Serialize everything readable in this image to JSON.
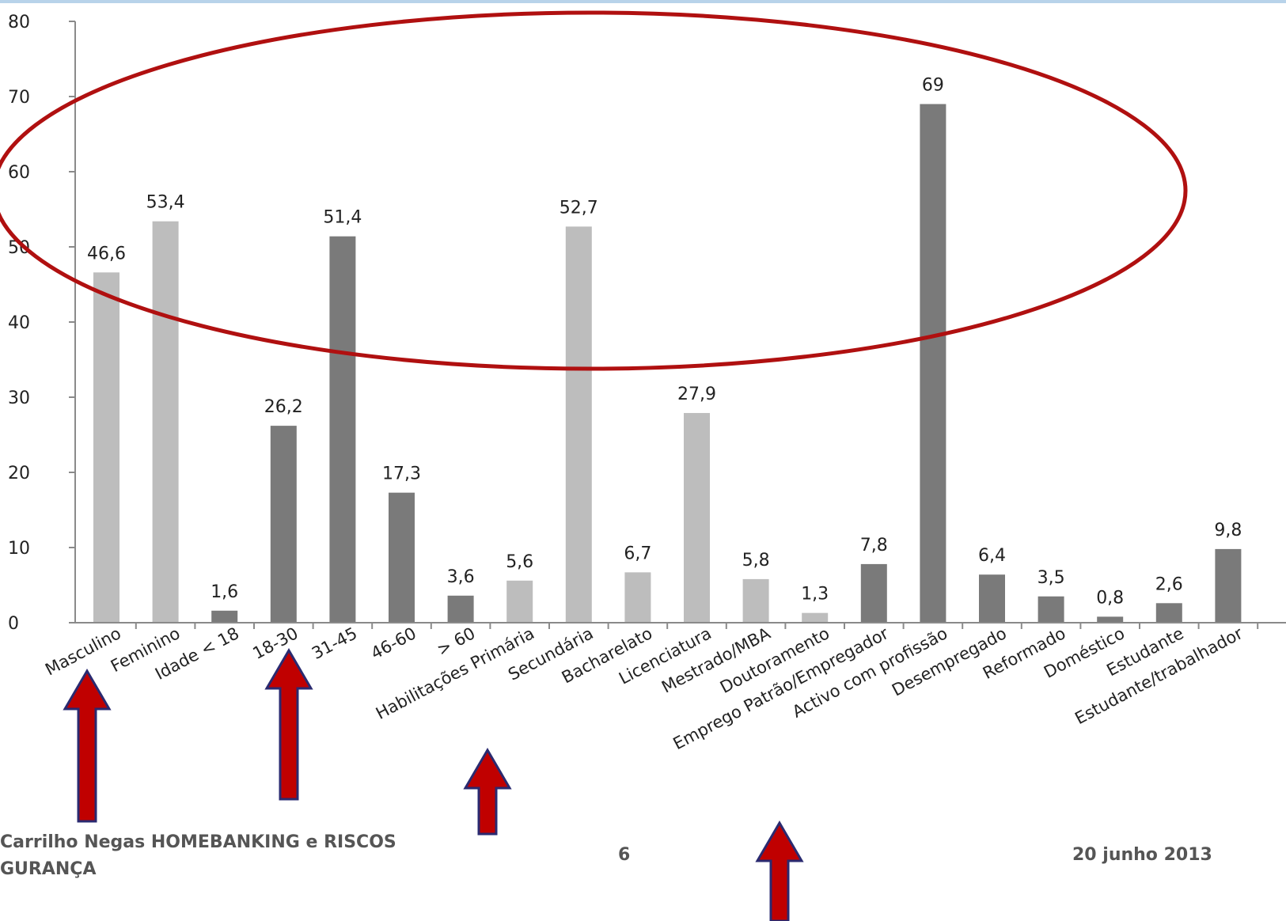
{
  "colors": {
    "dark_bar": "#7a7a7a",
    "light_bar": "#bdbdbd",
    "ellipse": "#b01010",
    "arrow_fill": "#c00000",
    "arrow_stroke": "#2a2a70"
  },
  "chart_data": {
    "type": "bar",
    "categories": [
      "Masculino",
      "Feminino",
      "Idade < 18",
      "18-30",
      "31-45",
      "46-60",
      "> 60",
      "Habilitações Primária",
      "Secundária",
      "Bacharelato",
      "Licenciatura",
      "Mestrado/MBA",
      "Doutoramento",
      "Emprego Patrão/Empregador",
      "Activo com profissão",
      "Desempregado",
      "Reformado",
      "Doméstico",
      "Estudante",
      "Estudante/trabalhador"
    ],
    "values": [
      46.6,
      53.4,
      1.6,
      26.2,
      51.4,
      17.3,
      3.6,
      5.6,
      52.7,
      6.7,
      27.9,
      5.8,
      1.3,
      7.8,
      69,
      6.4,
      3.5,
      0.8,
      2.6,
      9.8
    ],
    "value_labels": [
      "46,6",
      "53,4",
      "1,6",
      "26,2",
      "51,4",
      "17,3",
      "3,6",
      "5,6",
      "52,7",
      "6,7",
      "27,9",
      "5,8",
      "1,3",
      "7,8",
      "69",
      "6,4",
      "3,5",
      "0,8",
      "2,6",
      "9,8"
    ],
    "bar_shades": [
      "light",
      "light",
      "dark",
      "dark",
      "dark",
      "dark",
      "dark",
      "light",
      "light",
      "light",
      "light",
      "light",
      "light",
      "dark",
      "dark",
      "dark",
      "dark",
      "dark",
      "dark",
      "dark"
    ],
    "yticks": [
      "0",
      "10",
      "20",
      "30",
      "40",
      "50",
      "60",
      "70",
      "80"
    ],
    "ylim": [
      0,
      80
    ],
    "title": "",
    "xlabel": "",
    "ylabel": "",
    "grid": false,
    "legend": "none"
  },
  "annotations": {
    "ellipse": "highlight of high-value bars",
    "arrows": [
      "up-arrow",
      "up-arrow",
      "up-arrow",
      "up-arrow"
    ]
  },
  "footer": {
    "author": "Carrilho Negas HOMEBANKING e RISCOS GURANÇA",
    "page": "6",
    "date": "20 junho 2013"
  }
}
